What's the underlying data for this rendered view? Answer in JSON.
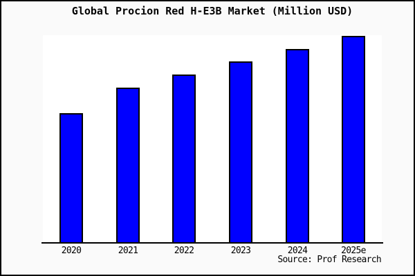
{
  "chart_data": {
    "type": "bar",
    "title": "Global Procion Red H-E3B Market (Million USD)",
    "categories": [
      "2020",
      "2021",
      "2022",
      "2023",
      "2024",
      "2025e"
    ],
    "values_relative": [
      62.8,
      75.1,
      81.4,
      87.7,
      93.7,
      100
    ],
    "value_note": "y-axis has no ticks or labels; values are percent of tallest bar (2025e = 100)",
    "ylim": [
      0,
      100.4
    ],
    "xlabel": "",
    "ylabel": "",
    "grid": false,
    "legend": null,
    "bar_fill_color": "#0000ff",
    "bar_edge_color": "#000000",
    "plot_background": "#ffffff",
    "figure_background": "#fafafa",
    "axis_line_color": "#000000",
    "source": "Source: Prof Research"
  }
}
